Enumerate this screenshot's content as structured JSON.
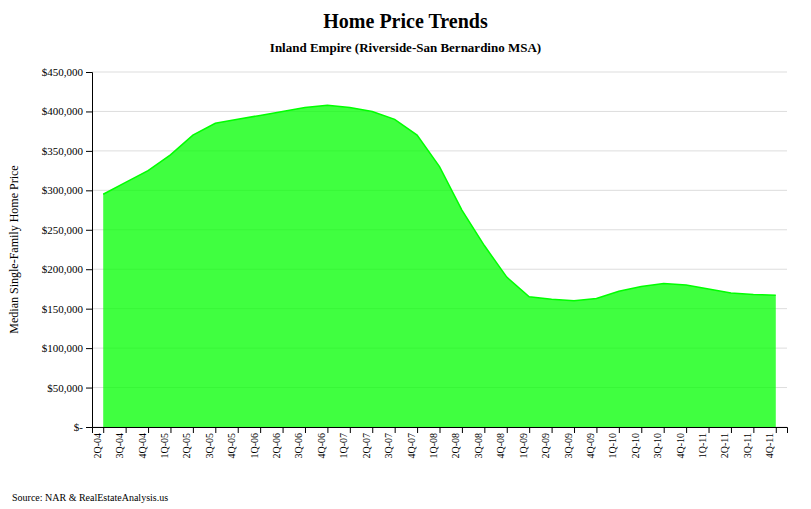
{
  "chart_data": {
    "type": "area",
    "title": "Home Price Trends",
    "subtitle": "Inland Empire (Riverside-San Bernardino MSA)",
    "y_label": "Median Single-Family Home Price",
    "source": "Source: NAR & RealEstateAnalysis.us",
    "categories": [
      "2Q-04",
      "3Q-04",
      "4Q-04",
      "1Q-05",
      "2Q-05",
      "3Q-05",
      "4Q-05",
      "1Q-06",
      "2Q-06",
      "3Q-06",
      "4Q-06",
      "1Q-07",
      "2Q-07",
      "3Q-07",
      "4Q-07",
      "1Q-08",
      "2Q-08",
      "3Q-08",
      "4Q-08",
      "1Q-09",
      "2Q-09",
      "3Q-09",
      "4Q-09",
      "1Q-10",
      "2Q-10",
      "3Q-10",
      "4Q-10",
      "1Q-11",
      "2Q-11",
      "3Q-11",
      "4Q-11"
    ],
    "values": [
      295000,
      310000,
      325000,
      345000,
      370000,
      385000,
      390000,
      395000,
      400000,
      405000,
      408000,
      405000,
      400000,
      390000,
      370000,
      330000,
      275000,
      230000,
      190000,
      165000,
      162000,
      160000,
      163000,
      172000,
      178000,
      182000,
      180000,
      175000,
      170000,
      168000,
      167000
    ],
    "color": "#00FF00",
    "ylim": [
      0,
      450000
    ],
    "yticks": [
      {
        "value": 0,
        "label": "$-"
      },
      {
        "value": 50000,
        "label": "$50,000"
      },
      {
        "value": 100000,
        "label": "$100,000"
      },
      {
        "value": 150000,
        "label": "$150,000"
      },
      {
        "value": 200000,
        "label": "$200,000"
      },
      {
        "value": 250000,
        "label": "$250,000"
      },
      {
        "value": 300000,
        "label": "$300,000"
      },
      {
        "value": 350000,
        "label": "$350,000"
      },
      {
        "value": 400000,
        "label": "$400,000"
      },
      {
        "value": 450000,
        "label": "$450,000"
      }
    ],
    "grid": true
  }
}
